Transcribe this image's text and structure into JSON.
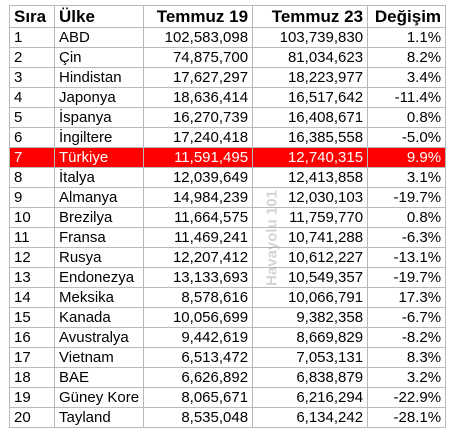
{
  "table": {
    "headers": {
      "rank": "Sıra",
      "country": "Ülke",
      "jul19": "Temmuz 19",
      "jul23": "Temmuz 23",
      "change": "Değişim"
    },
    "highlight_color": "#ff0000",
    "rows": [
      {
        "rank": "1",
        "country": "ABD",
        "jul19": "102,583,098",
        "jul23": "103,739,830",
        "change": "1.1%"
      },
      {
        "rank": "2",
        "country": "Çin",
        "jul19": "74,875,700",
        "jul23": "81,034,623",
        "change": "8.2%"
      },
      {
        "rank": "3",
        "country": "Hindistan",
        "jul19": "17,627,297",
        "jul23": "18,223,977",
        "change": "3.4%"
      },
      {
        "rank": "4",
        "country": "Japonya",
        "jul19": "18,636,414",
        "jul23": "16,517,642",
        "change": "-11.4%"
      },
      {
        "rank": "5",
        "country": "İspanya",
        "jul19": "16,270,739",
        "jul23": "16,408,671",
        "change": "0.8%"
      },
      {
        "rank": "6",
        "country": "İngiltere",
        "jul19": "17,240,418",
        "jul23": "16,385,558",
        "change": "-5.0%"
      },
      {
        "rank": "7",
        "country": "Türkiye",
        "jul19": "11,591,495",
        "jul23": "12,740,315",
        "change": "9.9%",
        "highlight": true
      },
      {
        "rank": "8",
        "country": "İtalya",
        "jul19": "12,039,649",
        "jul23": "12,413,858",
        "change": "3.1%"
      },
      {
        "rank": "9",
        "country": "Almanya",
        "jul19": "14,984,239",
        "jul23": "12,030,103",
        "change": "-19.7%"
      },
      {
        "rank": "10",
        "country": "Brezilya",
        "jul19": "11,664,575",
        "jul23": "11,759,770",
        "change": "0.8%"
      },
      {
        "rank": "11",
        "country": "Fransa",
        "jul19": "11,469,241",
        "jul23": "10,741,288",
        "change": "-6.3%"
      },
      {
        "rank": "12",
        "country": "Rusya",
        "jul19": "12,207,412",
        "jul23": "10,612,227",
        "change": "-13.1%"
      },
      {
        "rank": "13",
        "country": "Endonezya",
        "jul19": "13,133,693",
        "jul23": "10,549,357",
        "change": "-19.7%"
      },
      {
        "rank": "14",
        "country": "Meksika",
        "jul19": "8,578,616",
        "jul23": "10,066,791",
        "change": "17.3%"
      },
      {
        "rank": "15",
        "country": "Kanada",
        "jul19": "10,056,699",
        "jul23": "9,382,358",
        "change": "-6.7%"
      },
      {
        "rank": "16",
        "country": "Avustralya",
        "jul19": "9,442,619",
        "jul23": "8,669,829",
        "change": "-8.2%"
      },
      {
        "rank": "17",
        "country": "Vietnam",
        "jul19": "6,513,472",
        "jul23": "7,053,131",
        "change": "8.3%"
      },
      {
        "rank": "18",
        "country": "BAE",
        "jul19": "6,626,892",
        "jul23": "6,838,879",
        "change": "3.2%"
      },
      {
        "rank": "19",
        "country": "Güney Kore",
        "jul19": "8,065,671",
        "jul23": "6,216,294",
        "change": "-22.9%"
      },
      {
        "rank": "20",
        "country": "Tayland",
        "jul19": "8,535,048",
        "jul23": "6,134,242",
        "change": "-28.1%"
      }
    ]
  },
  "watermark": "Havayolu 101"
}
